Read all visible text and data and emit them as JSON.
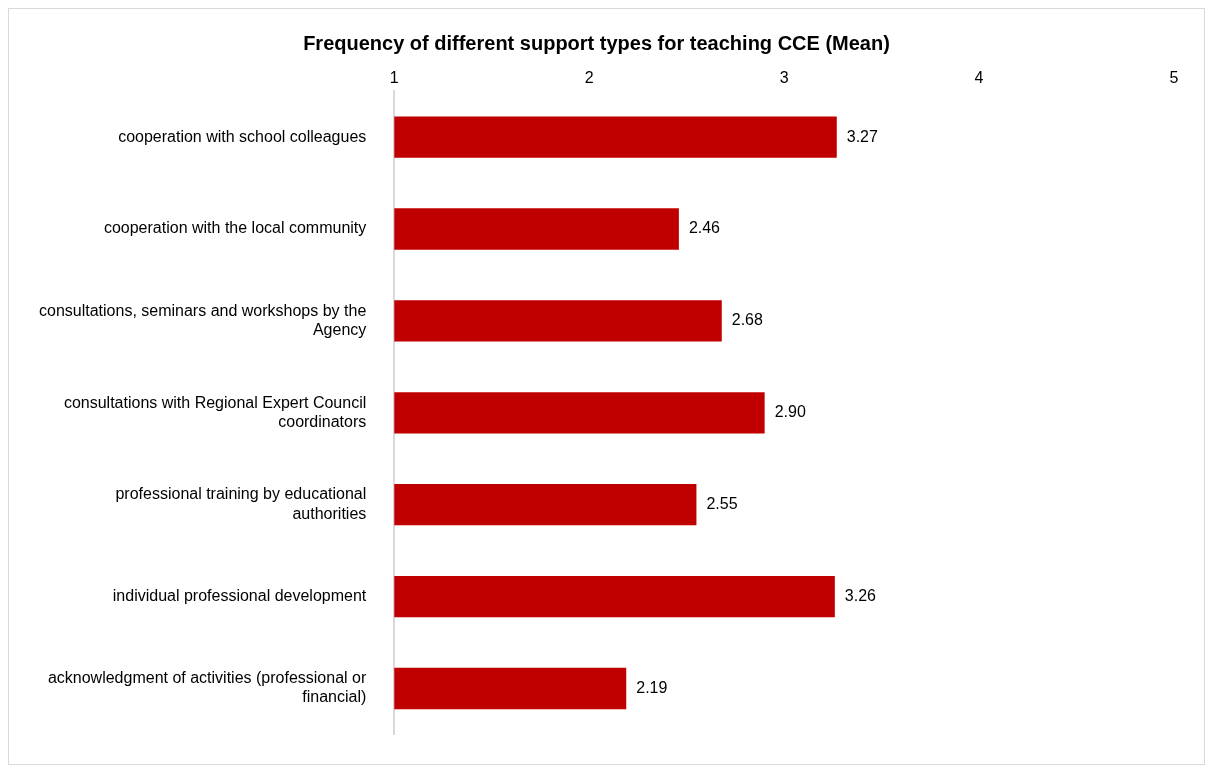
{
  "chart_data": {
    "type": "bar",
    "orientation": "horizontal",
    "title": "Frequency of different support types for teaching CCE (Mean)",
    "categories": [
      "cooperation with school colleagues",
      "cooperation with the local community",
      "consultations, seminars and workshops by the Agency",
      "consultations with Regional Expert Council coordinators",
      "professional training by educational authorities",
      "individual professional development",
      "acknowledgment of activities (professional or financial)"
    ],
    "values": [
      3.27,
      2.46,
      2.68,
      2.9,
      2.55,
      3.26,
      2.19
    ],
    "value_labels": [
      "3.27",
      "2.46",
      "2.68",
      "2.90",
      "2.55",
      "3.26",
      "2.19"
    ],
    "color": "#c00000",
    "xlim": [
      1,
      5
    ],
    "xticks": [
      1,
      2,
      3,
      4,
      5
    ],
    "grid": false,
    "legend": false
  }
}
